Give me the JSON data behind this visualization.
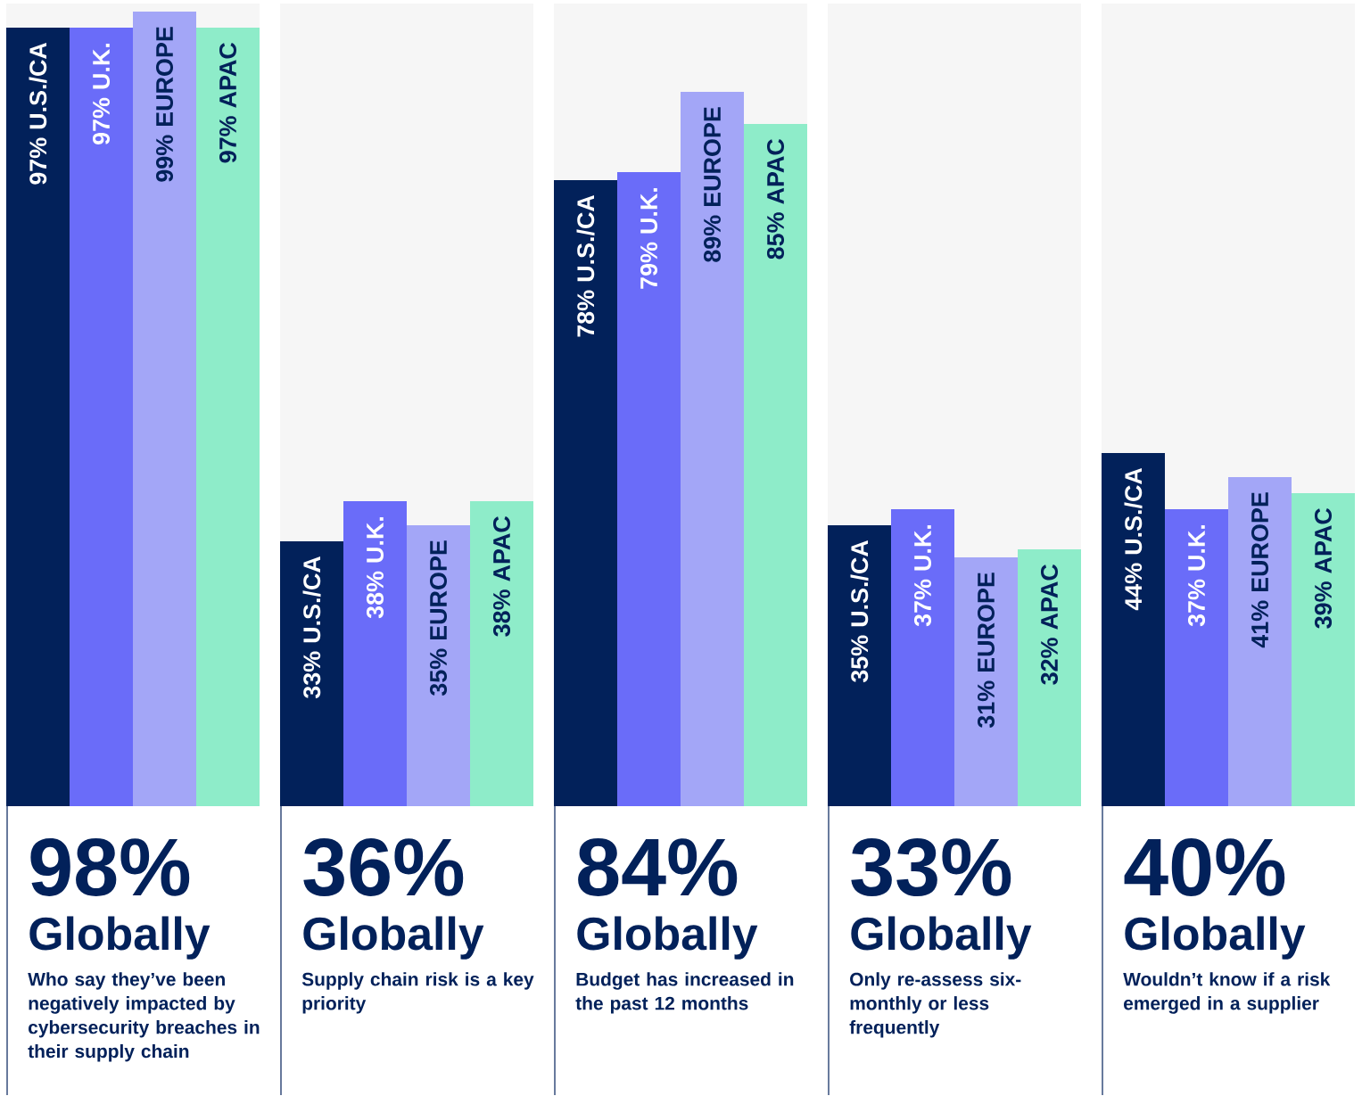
{
  "chart_data": [
    {
      "type": "bar",
      "title": "98%",
      "subtitle": "Globally",
      "annotations": [
        "Who say they’ve been negatively impacted by cybersecurity breaches in their supply chain"
      ],
      "categories": [
        "U.S./CA",
        "U.K.",
        "EUROPE",
        "APAC"
      ],
      "values": [
        97,
        97,
        99,
        97
      ],
      "value_labels": [
        "97%",
        "97%",
        "99%",
        "97%"
      ],
      "colors": [
        "#02215a",
        "#6a6cf9",
        "#a3a6f7",
        "#8eecc9"
      ],
      "ylim": [
        0,
        100
      ]
    },
    {
      "type": "bar",
      "title": "36%",
      "subtitle": "Globally",
      "annotations": [
        "Supply chain risk is a key priority"
      ],
      "categories": [
        "U.S./CA",
        "U.K.",
        "EUROPE",
        "APAC"
      ],
      "values": [
        33,
        38,
        35,
        38
      ],
      "value_labels": [
        "33%",
        "38%",
        "35%",
        "38%"
      ],
      "colors": [
        "#02215a",
        "#6a6cf9",
        "#a3a6f7",
        "#8eecc9"
      ],
      "ylim": [
        0,
        100
      ]
    },
    {
      "type": "bar",
      "title": "84%",
      "subtitle": "Globally",
      "annotations": [
        "Budget has increased in the past 12 months"
      ],
      "categories": [
        "U.S./CA",
        "U.K.",
        "EUROPE",
        "APAC"
      ],
      "values": [
        78,
        79,
        89,
        85
      ],
      "value_labels": [
        "78%",
        "79%",
        "89%",
        "85%"
      ],
      "colors": [
        "#02215a",
        "#6a6cf9",
        "#a3a6f7",
        "#8eecc9"
      ],
      "ylim": [
        0,
        100
      ]
    },
    {
      "type": "bar",
      "title": "33%",
      "subtitle": "Globally",
      "annotations": [
        "Only re-assess six-monthly or less frequently"
      ],
      "categories": [
        "U.S./CA",
        "U.K.",
        "EUROPE",
        "APAC"
      ],
      "values": [
        35,
        37,
        31,
        32
      ],
      "value_labels": [
        "35%",
        "37%",
        "31%",
        "32%"
      ],
      "colors": [
        "#02215a",
        "#6a6cf9",
        "#a3a6f7",
        "#8eecc9"
      ],
      "ylim": [
        0,
        100
      ]
    },
    {
      "type": "bar",
      "title": "40%",
      "subtitle": "Globally",
      "annotations": [
        "Wouldn’t know if a risk emerged in a supplier"
      ],
      "categories": [
        "U.S./CA",
        "U.K.",
        "EUROPE",
        "APAC"
      ],
      "values": [
        44,
        37,
        41,
        39
      ],
      "value_labels": [
        "44%",
        "37%",
        "41%",
        "39%"
      ],
      "colors": [
        "#02215a",
        "#6a6cf9",
        "#a3a6f7",
        "#8eecc9"
      ],
      "ylim": [
        0,
        100
      ]
    }
  ]
}
